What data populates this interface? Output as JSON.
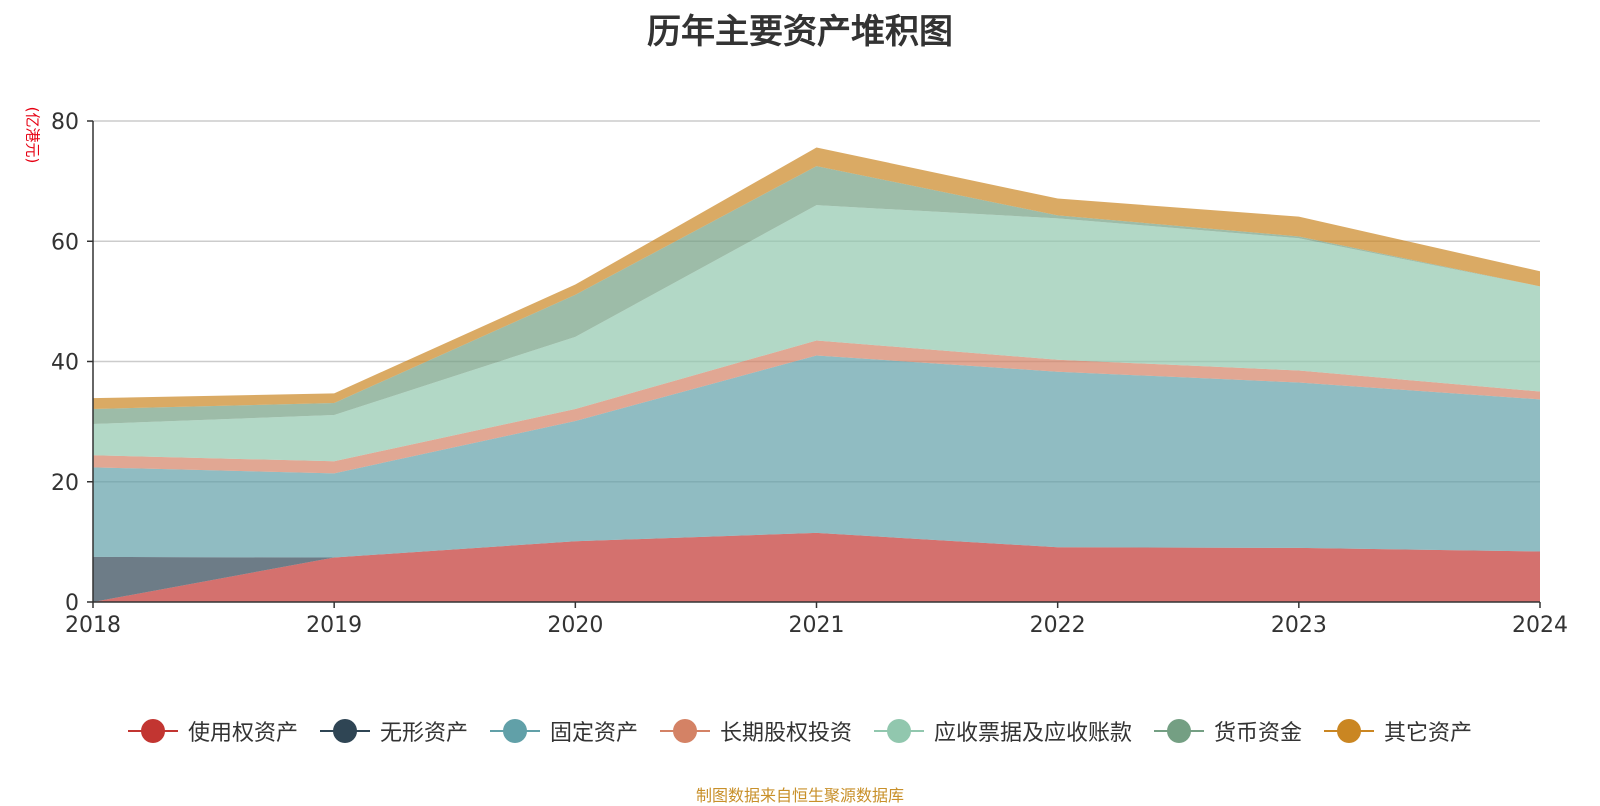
{
  "chart_data": {
    "type": "area",
    "stacked": true,
    "title": "历年主要资产堆积图",
    "unit_label": "(亿港元)",
    "x": [
      "2018",
      "2019",
      "2020",
      "2021",
      "2022",
      "2023",
      "2024"
    ],
    "yticks": [
      "0",
      "20",
      "40",
      "60",
      "80"
    ],
    "ylim": [
      0,
      80
    ],
    "grid": true,
    "legend_position": "bottom",
    "series": [
      {
        "name": "使用权资产",
        "color": "#c23531",
        "values": [
          0.0,
          7.4,
          10.1,
          11.5,
          9.1,
          9.0,
          8.4
        ]
      },
      {
        "name": "无形资产",
        "color": "#2f4554",
        "values": [
          7.5,
          0.0,
          0.0,
          0.0,
          0.0,
          0.0,
          0.0
        ]
      },
      {
        "name": "固定资产",
        "color": "#61a0a8",
        "values": [
          14.9,
          14.0,
          20.0,
          29.5,
          29.2,
          27.5,
          25.3
        ]
      },
      {
        "name": "长期股权投资",
        "color": "#d48265",
        "values": [
          2.0,
          2.0,
          2.0,
          2.5,
          2.0,
          2.0,
          1.3
        ]
      },
      {
        "name": "应收票据及应收账款",
        "color": "#91c7ae",
        "values": [
          5.2,
          7.7,
          12.0,
          22.5,
          23.5,
          22.0,
          17.5
        ]
      },
      {
        "name": "货币资金",
        "color": "#749f83",
        "values": [
          2.5,
          2.0,
          7.0,
          6.5,
          0.5,
          0.3,
          0.0
        ]
      },
      {
        "name": "其它资产",
        "color": "#ca8622",
        "values": [
          1.8,
          1.6,
          1.7,
          3.1,
          2.8,
          3.3,
          2.5
        ]
      }
    ]
  },
  "footer": {
    "source": "制图数据来自恒生聚源数据库"
  }
}
